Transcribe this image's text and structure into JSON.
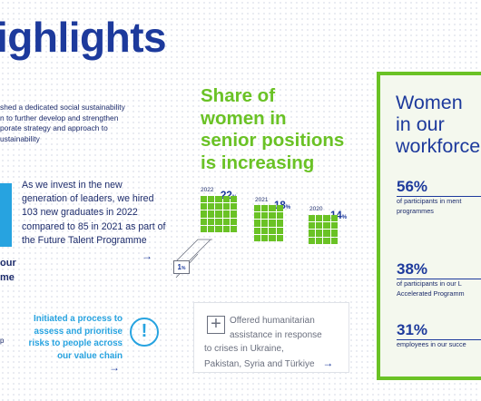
{
  "title": "ighlights",
  "intro": [
    "shed a dedicated social sustainability",
    "n to further develop and strengthen",
    "porate strategy and approach to",
    "ustainability"
  ],
  "hires": [
    "As we invest in the new",
    "generation of leaders, we hired",
    "103 new graduates in 2022",
    "compared to 85 in 2021 as part of",
    "the Future Talent Programme"
  ],
  "left_fragments": [
    "our",
    "me",
    "p"
  ],
  "arrow": "→",
  "share_heading": [
    "Share of",
    "women in",
    "senior positions",
    "is increasing"
  ],
  "chart_data": {
    "type": "bar",
    "categories": [
      "2022",
      "2021",
      "2020"
    ],
    "values": [
      22,
      18,
      14
    ],
    "unit": "%",
    "increase": 1,
    "value_labels": [
      "22",
      "18",
      "14"
    ],
    "increase_label": "1"
  },
  "risk_text": [
    "Initiated a process to",
    "assess and prioritise",
    "risks to people across",
    "our value chain"
  ],
  "risk_icon": "!",
  "humanitarian": [
    "Offered humanitarian",
    "assistance in response",
    "to crises in Ukraine,",
    "Pakistan, Syria and Türkiye"
  ],
  "plus_icon": "+",
  "panel": {
    "heading": [
      "Women",
      "in our",
      "workforce"
    ],
    "stats": [
      {
        "value": "56%",
        "desc": [
          "of participants in ment",
          "programmes"
        ]
      },
      {
        "value": "38%",
        "desc": [
          "of participants in our L",
          "Accelerated Programm"
        ]
      },
      {
        "value": "31%",
        "desc": [
          "employees in our succe"
        ]
      }
    ]
  },
  "colors": {
    "navy": "#1d3a9c",
    "green": "#6ac225",
    "cyan": "#27a3e0"
  }
}
